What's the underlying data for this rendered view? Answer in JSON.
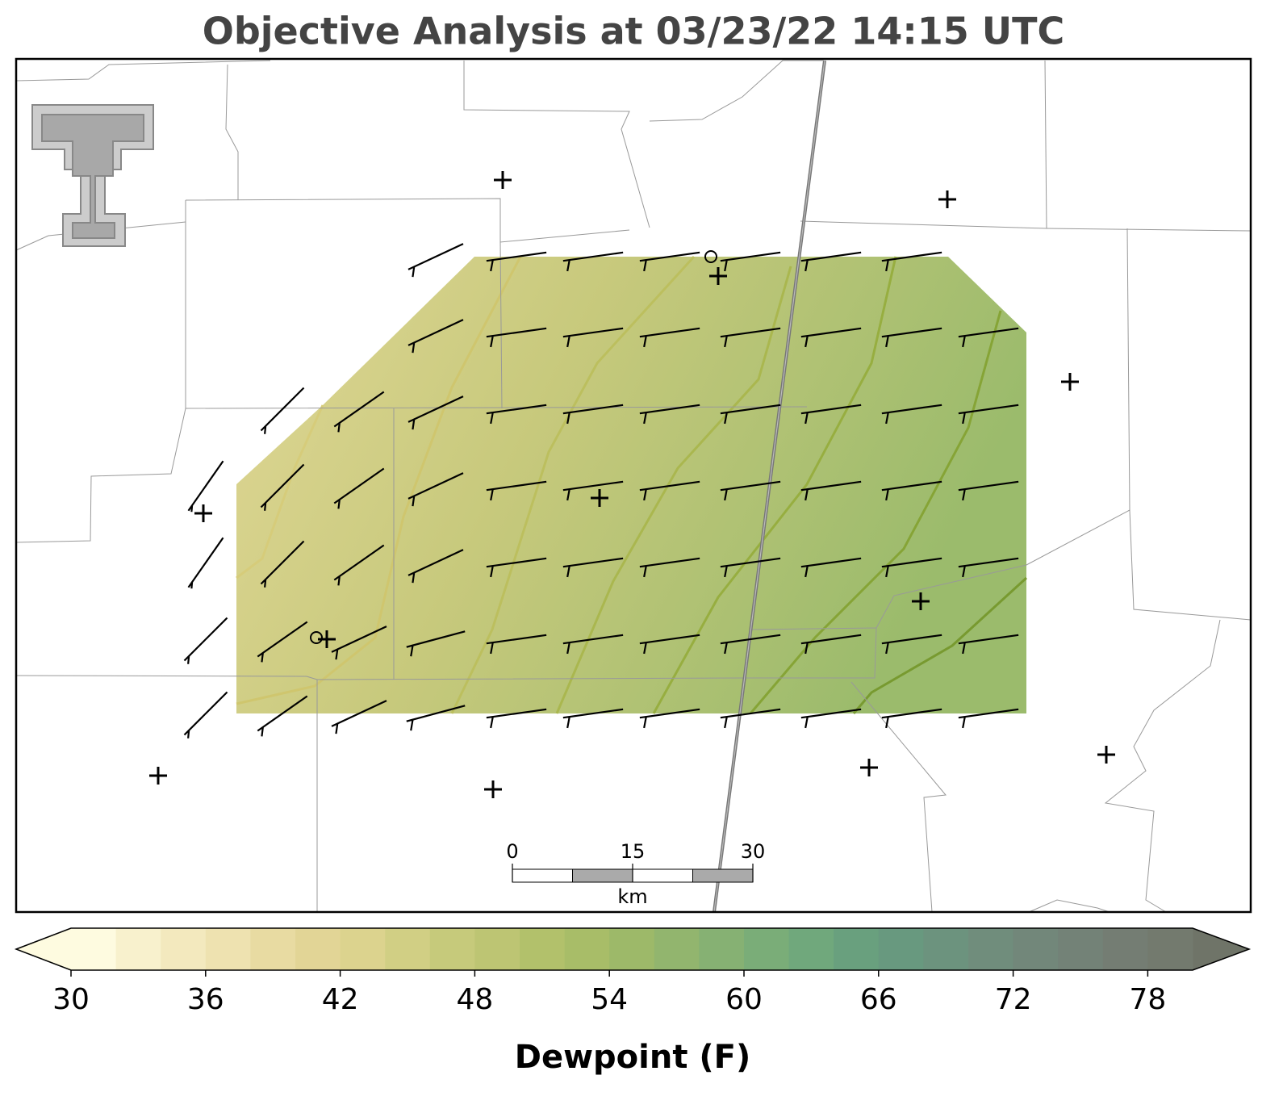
{
  "title": "Objective Analysis at 03/23/22 14:15 UTC",
  "colorbar": {
    "label": "Dewpoint (F)",
    "lim": [
      30,
      80
    ],
    "ticks": [
      30,
      36,
      42,
      48,
      54,
      60,
      66,
      72,
      78
    ],
    "colors": [
      "#fefbe0",
      "#f8f1cd",
      "#f3e9be",
      "#eee2b0",
      "#e8dba2",
      "#e2d596",
      "#dcd38e",
      "#d1cf84",
      "#c6ca7b",
      "#bdc573",
      "#b2c16b",
      "#a8bd68",
      "#9db969",
      "#92b56e",
      "#86b173",
      "#7aad78",
      "#70a87c",
      "#69a07e",
      "#68997f",
      "#6c937e",
      "#708d7c",
      "#72877a",
      "#738277",
      "#747d73",
      "#737a6e"
    ],
    "under_color": "#fefbe0",
    "over_color": "#6f7468"
  },
  "scalebar": {
    "ticks": [
      0,
      15,
      30
    ],
    "unit": "km"
  }
}
